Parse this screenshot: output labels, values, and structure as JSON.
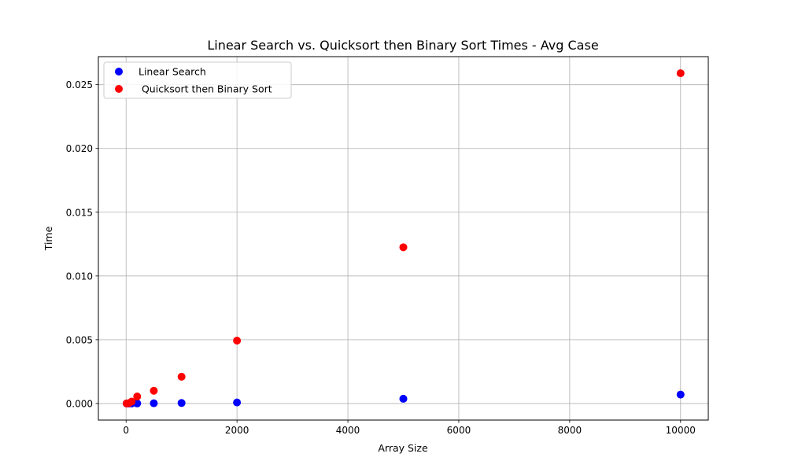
{
  "chart_data": {
    "type": "scatter",
    "title": "Linear Search vs. Quicksort then Binary Sort  Times - Avg Case",
    "xlabel": "Array Size",
    "ylabel": "Time",
    "xlim": [
      -500,
      10500
    ],
    "ylim": [
      -0.0013,
      0.0272
    ],
    "xticks": [
      0,
      2000,
      4000,
      6000,
      8000,
      10000
    ],
    "xtick_labels": [
      "0",
      "2000",
      "4000",
      "6000",
      "8000",
      "10000"
    ],
    "yticks": [
      0.0,
      0.005,
      0.01,
      0.015,
      0.02,
      0.025
    ],
    "ytick_labels": [
      "0.000",
      "0.005",
      "0.010",
      "0.015",
      "0.020",
      "0.025"
    ],
    "grid": true,
    "legend_position": "top-left",
    "series": [
      {
        "name": "Linear Search",
        "color": "#0000ff",
        "x": [
          10,
          50,
          100,
          200,
          500,
          1000,
          2000,
          5000,
          10000
        ],
        "y": [
          5e-07,
          2e-06,
          4e-06,
          8e-06,
          2e-05,
          4e-05,
          8e-05,
          0.00037,
          0.0007
        ]
      },
      {
        "name": " Quicksort then Binary Sort",
        "color": "#ff0000",
        "x": [
          10,
          50,
          100,
          200,
          500,
          1000,
          2000,
          5000,
          10000
        ],
        "y": [
          5e-06,
          3e-05,
          0.00015,
          0.00055,
          0.001,
          0.0021,
          0.00493,
          0.01225,
          0.0259
        ]
      }
    ]
  }
}
